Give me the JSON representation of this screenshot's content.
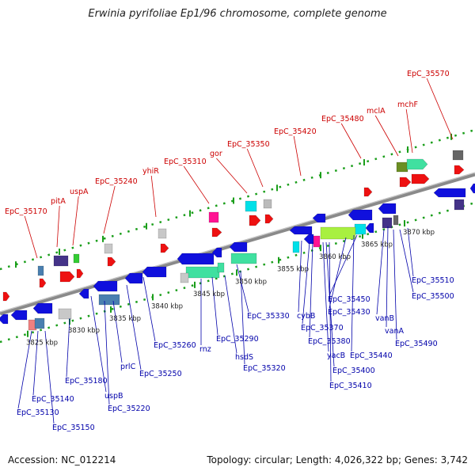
{
  "title": "Erwinia pyrifoliae Ep1/96 chromosome, complete genome",
  "accession": "Accession: NC_012214",
  "topology": "Topology: circular; Length: 4,026,322 bp; Genes: 3,742",
  "colors": {
    "backbone": "#8a8a8a",
    "dot_track": "#1a9e1a",
    "label_forward": "#cc0000",
    "label_reverse": "#0000aa",
    "gene_blue": "#1010dd",
    "gene_red": "#ee1111"
  },
  "scale_labels": [
    "3825 kbp",
    "3830 kbp",
    "3835 kbp",
    "3840 kbp",
    "3845 kbp",
    "3850 kbp",
    "3855 kbp",
    "3860 kbp",
    "3865 kbp",
    "3870 kbp"
  ],
  "forward_labels": [
    "EpC_35570",
    "mchF",
    "mclA",
    "EpC_35480",
    "EpC_35420",
    "EpC_35350",
    "gor",
    "EpC_35310",
    "yhiR",
    "EpC_35240",
    "uspA",
    "pitA",
    "EpC_35170"
  ],
  "reverse_labels": [
    "EpC_35510",
    "EpC_35500",
    "vanB",
    "vanA",
    "EpC_35490",
    "EpC_35450",
    "EpC_35430",
    "EpC_35440",
    "cybB",
    "EpC_35370",
    "EpC_35380",
    "yacB",
    "EpC_35400",
    "EpC_35410",
    "EpC_35330",
    "EpC_35320",
    "hsdS",
    "EpC_35290",
    "rnz",
    "EpC_35260",
    "EpC_35250",
    "prlC",
    "EpC_35220",
    "uspB",
    "EpC_35180",
    "EpC_35140",
    "EpC_35130",
    "EpC_35150"
  ]
}
